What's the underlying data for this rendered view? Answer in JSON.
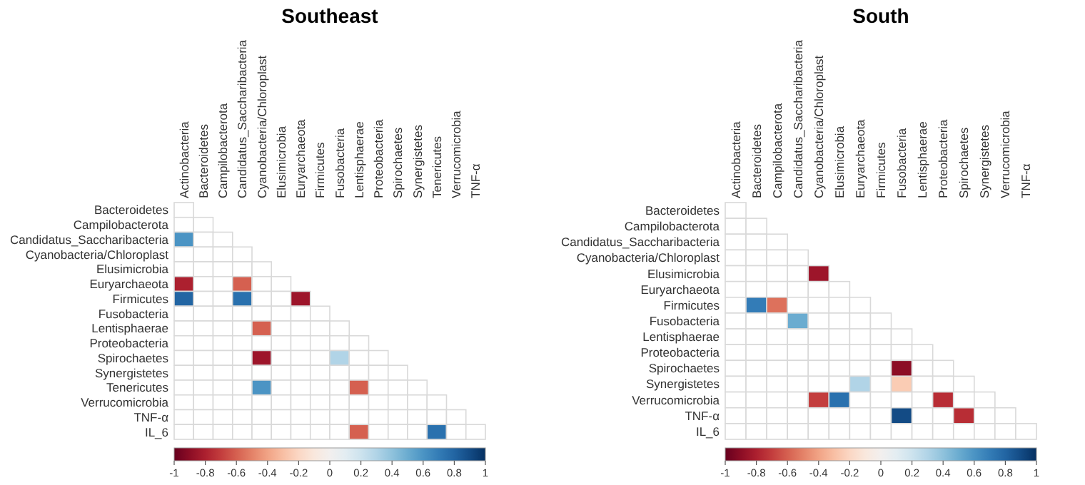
{
  "chart_data": [
    {
      "type": "heatmap",
      "title": "Southeast",
      "categories": [
        "Actinobacteria",
        "Bacteroidetes",
        "Campilobacterota",
        "Candidatus_Saccharibacteria",
        "Cyanobacteria/Chloroplast",
        "Elusimicrobia",
        "Euryarchaeota",
        "Firmicutes",
        "Fusobacteria",
        "Lentisphaerae",
        "Proteobacteria",
        "Spirochaetes",
        "Synergistetes",
        "Tenericutes",
        "Verrucomicrobia",
        "TNF-α"
      ],
      "y_categories": [
        "Bacteroidetes",
        "Campilobacterota",
        "Candidatus_Saccharibacteria",
        "Cyanobacteria/Chloroplast",
        "Elusimicrobia",
        "Euryarchaeota",
        "Firmicutes",
        "Fusobacteria",
        "Lentisphaerae",
        "Proteobacteria",
        "Spirochaetes",
        "Synergistetes",
        "Tenericutes",
        "Verrucomicrobia",
        "TNF-α",
        "IL_6"
      ],
      "cells": [
        [
          null,
          null,
          null,
          null,
          null,
          null,
          null,
          null,
          null,
          null,
          null,
          null,
          null,
          null,
          null,
          null
        ],
        [
          null,
          null,
          null,
          null,
          null,
          null,
          null,
          null,
          null,
          null,
          null,
          null,
          null,
          null,
          null,
          null
        ],
        [
          0.6,
          null,
          null,
          null,
          null,
          null,
          null,
          null,
          null,
          null,
          null,
          null,
          null,
          null,
          null,
          null
        ],
        [
          null,
          null,
          null,
          null,
          null,
          null,
          null,
          null,
          null,
          null,
          null,
          null,
          null,
          null,
          null,
          null
        ],
        [
          null,
          null,
          null,
          null,
          null,
          null,
          null,
          null,
          null,
          null,
          null,
          null,
          null,
          null,
          null,
          null
        ],
        [
          -0.8,
          null,
          null,
          -0.6,
          null,
          null,
          null,
          null,
          null,
          null,
          null,
          null,
          null,
          null,
          null,
          null
        ],
        [
          0.8,
          null,
          null,
          0.75,
          null,
          null,
          -0.85,
          null,
          null,
          null,
          null,
          null,
          null,
          null,
          null,
          null
        ],
        [
          null,
          null,
          null,
          null,
          null,
          null,
          null,
          null,
          null,
          null,
          null,
          null,
          null,
          null,
          null,
          null
        ],
        [
          null,
          null,
          null,
          null,
          -0.6,
          null,
          null,
          null,
          null,
          null,
          null,
          null,
          null,
          null,
          null,
          null
        ],
        [
          null,
          null,
          null,
          null,
          null,
          null,
          null,
          null,
          null,
          null,
          null,
          null,
          null,
          null,
          null,
          null
        ],
        [
          null,
          null,
          null,
          null,
          -0.85,
          null,
          null,
          null,
          0.3,
          null,
          null,
          null,
          null,
          null,
          null,
          null
        ],
        [
          null,
          null,
          null,
          null,
          null,
          null,
          null,
          null,
          null,
          null,
          null,
          null,
          null,
          null,
          null,
          null
        ],
        [
          null,
          null,
          null,
          null,
          0.6,
          null,
          null,
          null,
          null,
          -0.6,
          null,
          null,
          null,
          null,
          null,
          null
        ],
        [
          null,
          null,
          null,
          null,
          null,
          null,
          null,
          null,
          null,
          null,
          null,
          null,
          null,
          null,
          null,
          null
        ],
        [
          null,
          null,
          null,
          null,
          null,
          null,
          null,
          null,
          null,
          null,
          null,
          null,
          null,
          null,
          null,
          null
        ],
        [
          null,
          null,
          null,
          null,
          null,
          null,
          null,
          null,
          null,
          -0.6,
          null,
          null,
          null,
          0.75,
          null,
          null
        ]
      ],
      "clim": [
        -1,
        1
      ],
      "cticks": [
        -1,
        -0.8,
        -0.6,
        -0.4,
        -0.2,
        0,
        0.2,
        0.4,
        0.6,
        0.8,
        1
      ]
    },
    {
      "type": "heatmap",
      "title": "South",
      "categories": [
        "Actinobacteria",
        "Bacteroidetes",
        "Campilobacterota",
        "Candidatus_Saccharibacteria",
        "Cyanobacteria/Chloroplast",
        "Elusimicrobia",
        "Euryarchaeota",
        "Firmicutes",
        "Fusobacteria",
        "Lentisphaerae",
        "Proteobacteria",
        "Spirochaetes",
        "Synergistetes",
        "Verrucomicrobia",
        "TNF-α"
      ],
      "y_categories": [
        "Bacteroidetes",
        "Campilobacterota",
        "Candidatus_Saccharibacteria",
        "Cyanobacteria/Chloroplast",
        "Elusimicrobia",
        "Euryarchaeota",
        "Firmicutes",
        "Fusobacteria",
        "Lentisphaerae",
        "Proteobacteria",
        "Spirochaetes",
        "Synergistetes",
        "Verrucomicrobia",
        "TNF-α",
        "IL_6"
      ],
      "cells": [
        [
          null,
          null,
          null,
          null,
          null,
          null,
          null,
          null,
          null,
          null,
          null,
          null,
          null,
          null,
          null
        ],
        [
          null,
          null,
          null,
          null,
          null,
          null,
          null,
          null,
          null,
          null,
          null,
          null,
          null,
          null,
          null
        ],
        [
          null,
          null,
          null,
          null,
          null,
          null,
          null,
          null,
          null,
          null,
          null,
          null,
          null,
          null,
          null
        ],
        [
          null,
          null,
          null,
          null,
          null,
          null,
          null,
          null,
          null,
          null,
          null,
          null,
          null,
          null,
          null
        ],
        [
          null,
          null,
          null,
          null,
          -0.85,
          null,
          null,
          null,
          null,
          null,
          null,
          null,
          null,
          null,
          null
        ],
        [
          null,
          null,
          null,
          null,
          null,
          null,
          null,
          null,
          null,
          null,
          null,
          null,
          null,
          null,
          null
        ],
        [
          null,
          0.7,
          -0.55,
          null,
          null,
          null,
          null,
          null,
          null,
          null,
          null,
          null,
          null,
          null,
          null
        ],
        [
          null,
          null,
          null,
          0.5,
          null,
          null,
          null,
          null,
          null,
          null,
          null,
          null,
          null,
          null,
          null
        ],
        [
          null,
          null,
          null,
          null,
          null,
          null,
          null,
          null,
          null,
          null,
          null,
          null,
          null,
          null,
          null
        ],
        [
          null,
          null,
          null,
          null,
          null,
          null,
          null,
          null,
          null,
          null,
          null,
          null,
          null,
          null,
          null
        ],
        [
          null,
          null,
          null,
          null,
          null,
          null,
          null,
          null,
          -0.9,
          null,
          null,
          null,
          null,
          null,
          null
        ],
        [
          null,
          null,
          null,
          null,
          null,
          null,
          0.3,
          null,
          -0.25,
          null,
          null,
          null,
          null,
          null,
          null
        ],
        [
          null,
          null,
          null,
          null,
          -0.7,
          0.75,
          null,
          null,
          null,
          null,
          -0.75,
          null,
          null,
          null,
          null
        ],
        [
          null,
          null,
          null,
          null,
          null,
          null,
          null,
          null,
          0.9,
          null,
          null,
          -0.75,
          null,
          null,
          null
        ],
        [
          null,
          null,
          null,
          null,
          null,
          null,
          null,
          null,
          null,
          null,
          null,
          null,
          null,
          null,
          null
        ]
      ],
      "clim": [
        -1,
        1
      ],
      "cticks": [
        -1,
        -0.8,
        -0.6,
        -0.4,
        -0.2,
        0,
        0.2,
        0.4,
        0.6,
        0.8,
        1
      ]
    }
  ]
}
